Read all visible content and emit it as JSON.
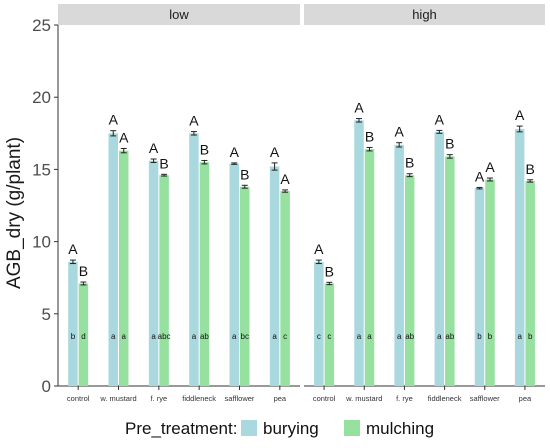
{
  "chart_data": {
    "type": "bar",
    "ylabel": "AGB_dry (g/plant)",
    "ylim": [
      0,
      25
    ],
    "yticks": [
      0,
      5,
      10,
      15,
      20,
      25
    ],
    "grid": false,
    "legend": {
      "title": "Pre_treatment:",
      "position": "bottom"
    },
    "series": [
      {
        "name": "burying",
        "color": "#a9d8df"
      },
      {
        "name": "mulching",
        "color": "#96e0a0"
      }
    ],
    "categories": [
      "control",
      "w. mustard",
      "f. rye",
      "fiddleneck",
      "safflower",
      "pea"
    ],
    "panels": [
      {
        "title": "low",
        "values": {
          "burying": [
            8.6,
            17.5,
            15.6,
            17.5,
            15.4,
            15.2
          ],
          "mulching": [
            7.1,
            16.3,
            14.6,
            15.5,
            13.8,
            13.5
          ]
        },
        "errors": {
          "burying": [
            0.12,
            0.18,
            0.12,
            0.12,
            0.05,
            0.25
          ],
          "mulching": [
            0.1,
            0.15,
            0.06,
            0.12,
            0.1,
            0.08
          ]
        },
        "upper_letters": {
          "burying": [
            "A",
            "A",
            "A",
            "A",
            "A",
            "A"
          ],
          "mulching": [
            "B",
            "A",
            "B",
            "B",
            "B",
            "A"
          ]
        },
        "lower_letters": {
          "burying": [
            "b",
            "a",
            "a",
            "a",
            "a",
            "a"
          ],
          "mulching": [
            "d",
            "a",
            "abc",
            "ab",
            "bc",
            "c"
          ]
        }
      },
      {
        "title": "high",
        "values": {
          "burying": [
            8.6,
            18.4,
            16.7,
            17.6,
            13.7,
            17.8
          ],
          "mulching": [
            7.1,
            16.4,
            14.6,
            15.9,
            14.3,
            14.2
          ]
        },
        "errors": {
          "burying": [
            0.12,
            0.12,
            0.15,
            0.1,
            0.05,
            0.2
          ],
          "mulching": [
            0.08,
            0.12,
            0.1,
            0.12,
            0.1,
            0.08
          ]
        },
        "upper_letters": {
          "burying": [
            "A",
            "A",
            "A",
            "A",
            "A",
            "A"
          ],
          "mulching": [
            "B",
            "B",
            "B",
            "B",
            "A",
            "B"
          ]
        },
        "lower_letters": {
          "burying": [
            "c",
            "a",
            "a",
            "a",
            "b",
            "a"
          ],
          "mulching": [
            "c",
            "a",
            "ab",
            "ab",
            "b",
            "b"
          ]
        }
      }
    ]
  }
}
